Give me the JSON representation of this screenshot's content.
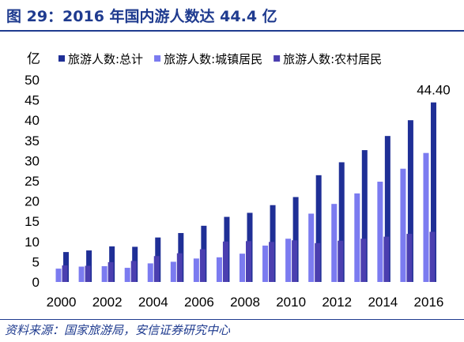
{
  "header": {
    "title": "图 29：2016 年国内游人数达 44.4 亿"
  },
  "footer": {
    "source": "资料来源：国家旅游局，安信证券研究中心"
  },
  "chart_data": {
    "type": "bar",
    "unit_label": "亿",
    "categories": [
      "2000",
      "2001",
      "2002",
      "2003",
      "2004",
      "2005",
      "2006",
      "2007",
      "2008",
      "2009",
      "2010",
      "2011",
      "2012",
      "2013",
      "2014",
      "2015",
      "2016"
    ],
    "x_tick_labels": [
      "2000",
      "2002",
      "2004",
      "2006",
      "2008",
      "2010",
      "2012",
      "2014",
      "2016"
    ],
    "ylim": [
      0,
      50
    ],
    "yticks": [
      0,
      5,
      10,
      15,
      20,
      25,
      30,
      35,
      40,
      45,
      50
    ],
    "legend_position": "top",
    "grid": false,
    "series": [
      {
        "name": "旅游人数:总计",
        "color": "#1f2f96",
        "values": [
          7.4,
          7.8,
          8.8,
          8.7,
          11.0,
          12.1,
          13.9,
          16.1,
          17.1,
          19.0,
          21.0,
          26.4,
          29.6,
          32.6,
          36.1,
          40.0,
          44.4
        ]
      },
      {
        "name": "旅游人数:城镇居民",
        "color": "#7b7bf0",
        "values": [
          3.3,
          3.8,
          3.9,
          3.5,
          4.6,
          5.0,
          5.8,
          6.1,
          7.0,
          9.0,
          10.7,
          16.9,
          19.3,
          21.9,
          24.8,
          28.0,
          31.9
        ]
      },
      {
        "name": "旅游人数:农村居民",
        "color": "#4b3fb0",
        "values": [
          4.1,
          4.0,
          4.9,
          5.2,
          6.4,
          7.1,
          8.1,
          10.0,
          10.1,
          9.9,
          10.3,
          9.6,
          10.2,
          10.7,
          11.2,
          11.9,
          12.4
        ]
      }
    ],
    "annotations": [
      {
        "category": "2016",
        "series": 0,
        "text": "44.40"
      }
    ]
  }
}
